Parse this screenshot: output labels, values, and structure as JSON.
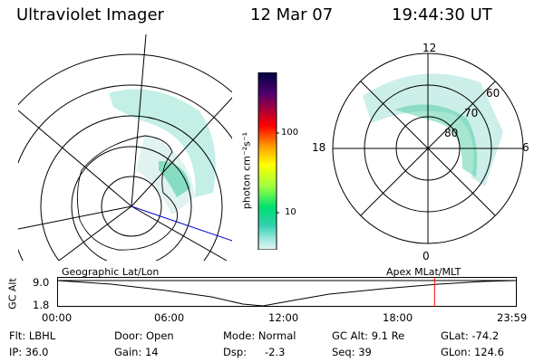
{
  "header": {
    "instrument": "Ultraviolet Imager",
    "date": "12 Mar 07",
    "time": "19:44:30 UT"
  },
  "left_panel_label": "Geographic Lat/Lon",
  "right_panel_label": "Apex MLat/MLT",
  "polar_labels": {
    "mlt": [
      "12",
      "18",
      "6",
      "0"
    ],
    "mlat": [
      "60",
      "70",
      "80"
    ]
  },
  "colorbar": {
    "unit_label": "photon cm⁻²s⁻¹",
    "ticks": [
      "100",
      "10"
    ],
    "colors": [
      "#000040",
      "#500070",
      "#ff0000",
      "#ffa000",
      "#ffff00",
      "#a0ff40",
      "#00e070",
      "#30d0b0",
      "#a0e8e0",
      "#e8f4f4"
    ]
  },
  "timeline": {
    "ylabel": "GC Alt",
    "y_ticks": [
      "9.0",
      "1.8"
    ],
    "x_ticks": [
      "00:00",
      "06:00",
      "12:00",
      "18:00",
      "23:59"
    ],
    "marker_time": "19:44",
    "marker_color": "#ff0000"
  },
  "info": {
    "flt": "Flt: LBHL",
    "door": "Door: Open",
    "mode": "Mode: Normal",
    "gcalt": "GC Alt: 9.1 Re",
    "glat": "GLat: -74.2",
    "ip": "IP: 36.0",
    "gain": "Gain: 14",
    "dsp_label": "Dsp:",
    "dsp_value": "-2.3",
    "seq": "Seq: 39",
    "glon": "GLon: 124.6"
  }
}
